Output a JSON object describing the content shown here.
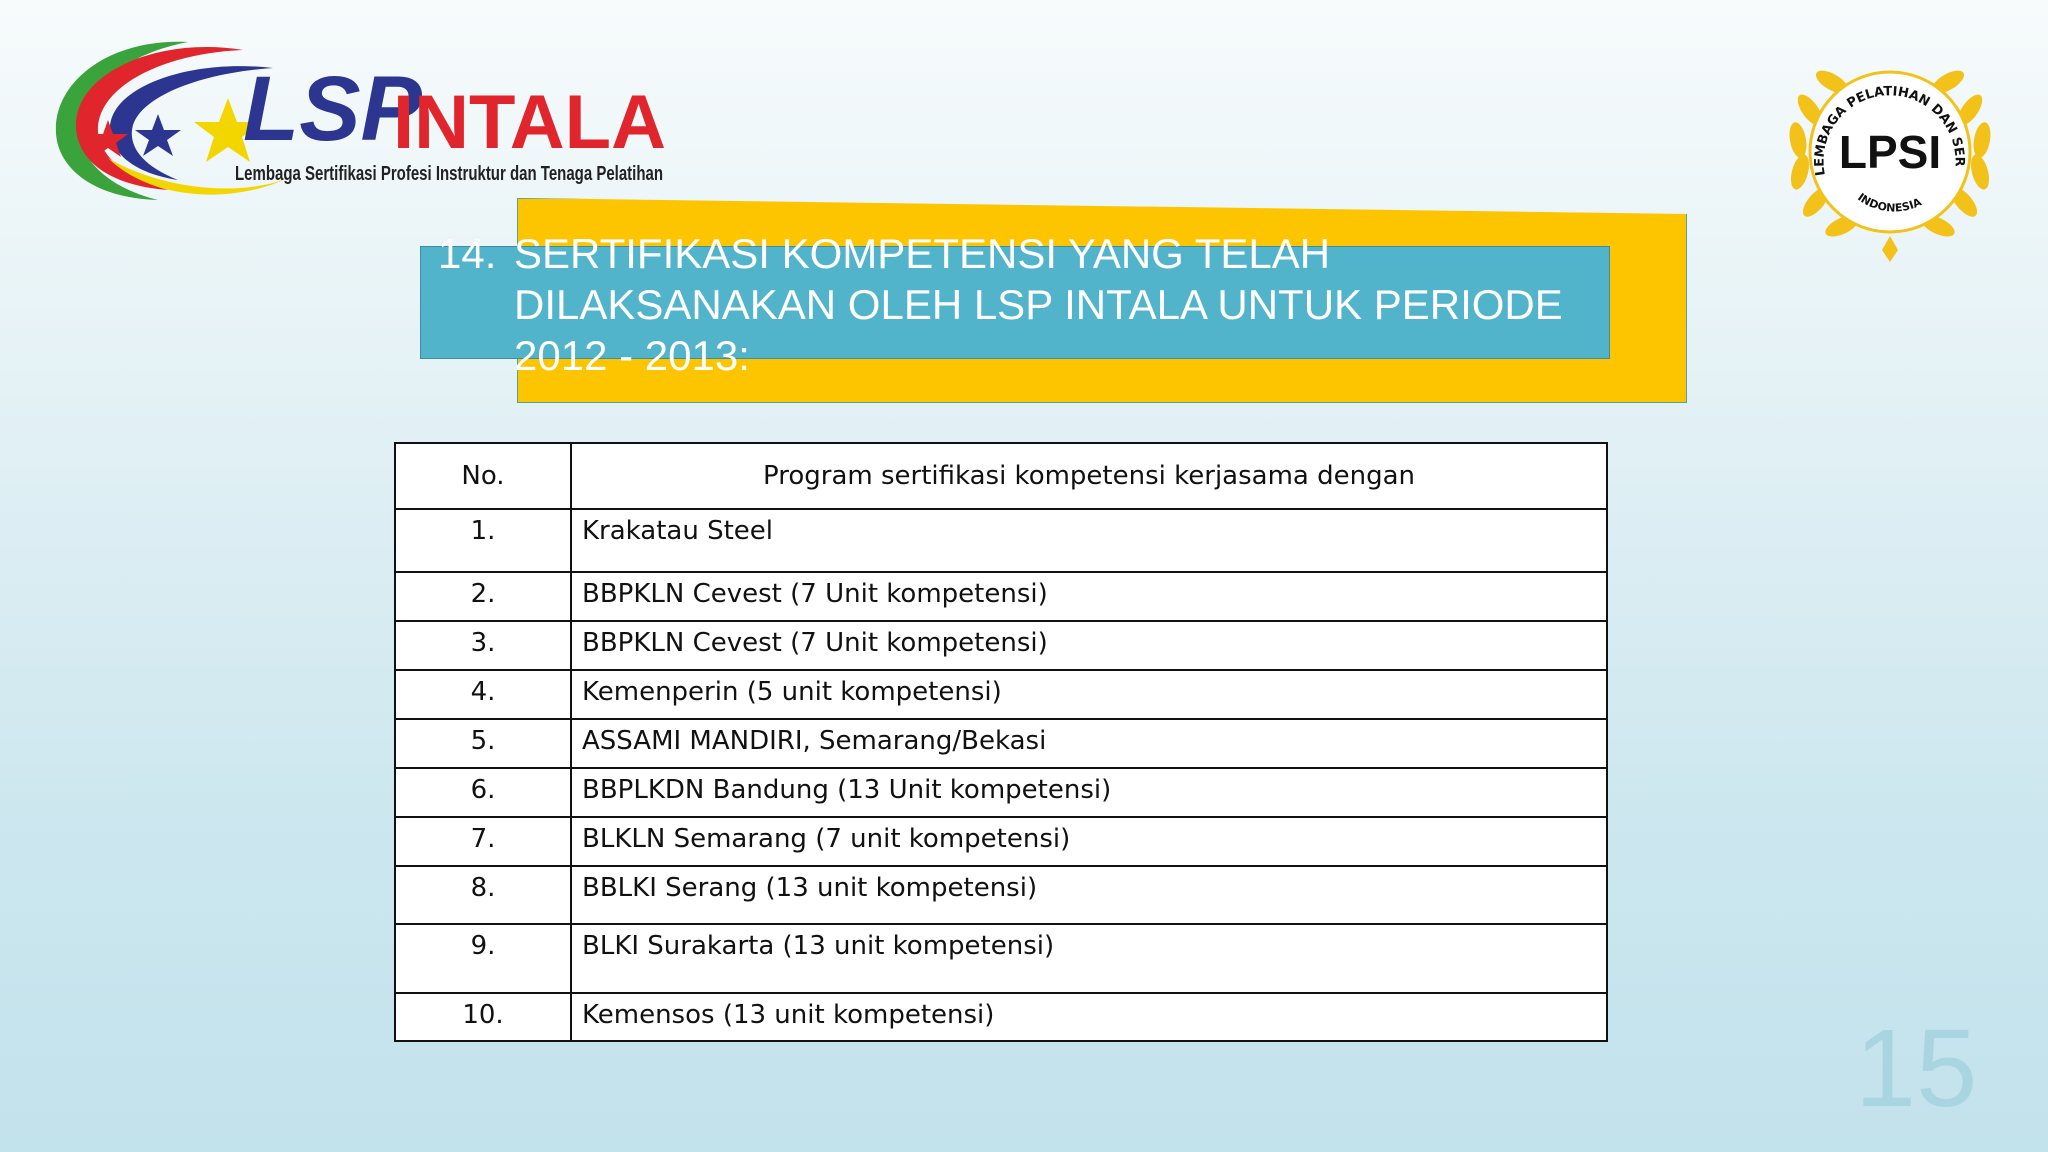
{
  "logo_left": {
    "lsp": "LSP",
    "intala": "INTALA",
    "tagline": "Lembaga Sertifikasi Profesi Instruktur dan Tenaga Pelatihan"
  },
  "logo_right": {
    "center": "LPSI",
    "ring_text": "LEMBAGA PELATIHAN DAN SERTIFIKASI",
    "bottom_text": "INDONESIA"
  },
  "heading": {
    "number": "14.",
    "text": "SERTIFIKASI KOMPETENSI YANG TELAH DILAKSANAKAN OLEH LSP INTALA UNTUK PERIODE 2012 - 2013:"
  },
  "table": {
    "headers": [
      "No.",
      "Program sertifikasi kompetensi kerjasama dengan"
    ],
    "rows": [
      {
        "no": "1.",
        "program": "Krakatau Steel"
      },
      {
        "no": "2.",
        "program": "BBPKLN Cevest  (7 Unit kompetensi)"
      },
      {
        "no": "3.",
        "program": "BBPKLN Cevest (7 Unit kompetensi)"
      },
      {
        "no": "4.",
        "program": "Kemenperin (5 unit kompetensi)"
      },
      {
        "no": "5.",
        "program": "ASSAMI MANDIRI, Semarang/Bekasi"
      },
      {
        "no": "6.",
        "program": "BBPLKDN Bandung  (13 Unit kompetensi)"
      },
      {
        "no": "7.",
        "program": "BLKLN Semarang (7 unit kompetensi)"
      },
      {
        "no": "8.",
        "program": "BBLKI Serang  (13 unit kompetensi)"
      },
      {
        "no": "9.",
        "program": "BLKI Surakarta (13 unit kompetensi)"
      },
      {
        "no": "10.",
        "program": "Kemensos (13 unit kompetensi)"
      }
    ]
  },
  "page_number": "15",
  "colors": {
    "banner_yellow": "#fdc400",
    "banner_teal": "#52b4cb",
    "logo_red": "#e0262c",
    "logo_blue": "#2c3590",
    "logo_yellow": "#f3d500",
    "logo_green": "#3aa33b",
    "gold": "#f2c21a"
  }
}
